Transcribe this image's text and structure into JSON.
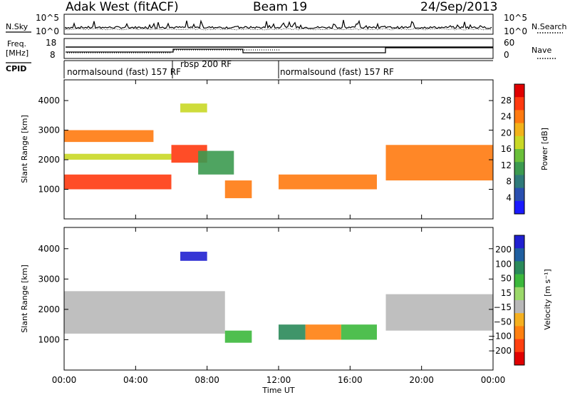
{
  "header": {
    "station": "Adak West (fitACF)",
    "beam": "Beam 19",
    "date": "24/Sep/2013"
  },
  "noise_panel": {
    "left_label": "N.Sky",
    "right_label": "N.Search",
    "left_ticks": [
      "10^5",
      "10^0"
    ],
    "right_ticks": [
      "10^5",
      "10^0"
    ]
  },
  "freq_panel": {
    "left_label_1": "Freq.",
    "left_label_2": "[MHz]",
    "right_label": "Nave",
    "left_ticks": [
      "18",
      "8"
    ],
    "right_ticks": [
      "60",
      "0"
    ]
  },
  "cpid": {
    "label": "CPID",
    "segments": [
      {
        "name": "normalsound (fast) 157 RF",
        "start_hour": 0,
        "end_hour": 6
      },
      {
        "name": "rbsp 200 RF",
        "start_hour": 6,
        "end_hour": 12
      },
      {
        "name": "normalsound (fast) 157 RF",
        "start_hour": 12,
        "end_hour": 24
      }
    ]
  },
  "chart_data": [
    {
      "type": "heatmap",
      "panel": "power",
      "ylabel": "Slant Range [km]",
      "ylim": [
        0,
        4700
      ],
      "yticks": [
        "1000",
        "2000",
        "3000",
        "4000"
      ],
      "xlim_hours": [
        0,
        24
      ],
      "colorbar": {
        "label": "Power [dB]",
        "ticks": [
          "4",
          "8",
          "12",
          "16",
          "20",
          "24",
          "28"
        ],
        "range": [
          0,
          30
        ],
        "colors": [
          "#1a1aff",
          "#2a4fb0",
          "#2f7a7a",
          "#3c9a50",
          "#6abf3a",
          "#c9d826",
          "#f2b21a",
          "#ff7a10",
          "#ff3a10",
          "#e00000"
        ]
      },
      "echo_regions": [
        {
          "t0": 0.0,
          "t1": 6.0,
          "r0": 1000,
          "r1": 1500,
          "power": 28
        },
        {
          "t0": 0.0,
          "t1": 6.0,
          "r0": 2000,
          "r1": 2200,
          "power": 16
        },
        {
          "t0": 0.0,
          "t1": 5.0,
          "r0": 2600,
          "r1": 3000,
          "power": 22
        },
        {
          "t0": 6.0,
          "t1": 8.0,
          "r0": 1900,
          "r1": 2500,
          "power": 26
        },
        {
          "t0": 7.5,
          "t1": 9.5,
          "r0": 1500,
          "r1": 2300,
          "power": 10
        },
        {
          "t0": 9.0,
          "t1": 10.5,
          "r0": 700,
          "r1": 1300,
          "power": 22
        },
        {
          "t0": 12.0,
          "t1": 17.5,
          "r0": 1000,
          "r1": 1500,
          "power": 22
        },
        {
          "t0": 18.0,
          "t1": 24.0,
          "r0": 1300,
          "r1": 2500,
          "power": 24
        },
        {
          "t0": 6.5,
          "t1": 8.0,
          "r0": 3600,
          "r1": 3900,
          "power": 18
        }
      ]
    },
    {
      "type": "heatmap",
      "panel": "velocity",
      "ylabel": "Slant Range [km]",
      "ylim": [
        0,
        4700
      ],
      "yticks": [
        "1000",
        "2000",
        "3000",
        "4000"
      ],
      "xlim_hours": [
        0,
        24
      ],
      "xticks": [
        "00:00",
        "04:00",
        "08:00",
        "12:00",
        "16:00",
        "20:00",
        "00:00"
      ],
      "xlabel": "Time UT",
      "colorbar": {
        "label": "Velocity [m s⁻¹]",
        "ticks": [
          "200",
          "100",
          "50",
          "15",
          "−15",
          "−50",
          "−100",
          "−200"
        ],
        "colors": [
          "#2020d0",
          "#1f5fa0",
          "#2a8a5a",
          "#3cb83c",
          "#9bd86a",
          "#b8b8b8",
          "#f5b020",
          "#ff8010",
          "#ff4010",
          "#e00000"
        ]
      },
      "echo_regions": [
        {
          "t0": 0.0,
          "t1": 9.0,
          "r0": 1200,
          "r1": 2600,
          "velocity": 0
        },
        {
          "t0": 9.0,
          "t1": 10.5,
          "r0": 900,
          "r1": 1300,
          "velocity": 40
        },
        {
          "t0": 12.0,
          "t1": 13.5,
          "r0": 1000,
          "r1": 1500,
          "velocity": 60
        },
        {
          "t0": 13.5,
          "t1": 15.5,
          "r0": 1000,
          "r1": 1500,
          "velocity": -60
        },
        {
          "t0": 15.5,
          "t1": 17.5,
          "r0": 1000,
          "r1": 1500,
          "velocity": 40
        },
        {
          "t0": 18.0,
          "t1": 24.0,
          "r0": 1300,
          "r1": 2500,
          "velocity": 0
        },
        {
          "t0": 6.5,
          "t1": 8.0,
          "r0": 3600,
          "r1": 3900,
          "velocity": 200
        }
      ]
    }
  ]
}
